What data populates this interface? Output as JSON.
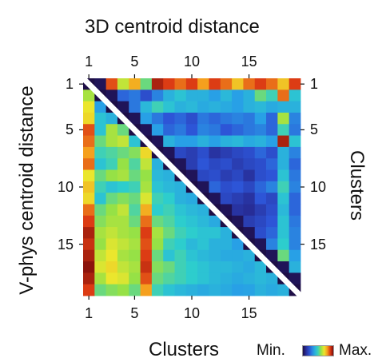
{
  "chart_data": {
    "type": "heatmap",
    "title": "3D centroid distance",
    "ylabel": "V-phys centroid distance",
    "xlabel": "Clusters",
    "ylabel_right": "Clusters",
    "ticks": [
      "1",
      "5",
      "10",
      "15"
    ],
    "tick_values": [
      1,
      5,
      10,
      15
    ],
    "n": 19,
    "legend": {
      "min_label": "Min.",
      "max_label": "Max.",
      "scale": "jet",
      "value_range": [
        0,
        1
      ]
    },
    "upper_triangle_label": "3D centroid distance",
    "lower_triangle_label": "V-phys centroid distance",
    "matrix": [
      [
        0.0,
        0.02,
        0.88,
        0.65,
        0.78,
        0.55,
        0.95,
        0.9,
        0.85,
        0.9,
        0.8,
        0.9,
        0.85,
        0.75,
        0.85,
        0.9,
        0.85,
        0.75,
        0.9
      ],
      [
        0.62,
        0.0,
        0.02,
        0.25,
        0.28,
        0.2,
        0.3,
        0.4,
        0.45,
        0.4,
        0.4,
        0.35,
        0.42,
        0.35,
        0.4,
        0.55,
        0.5,
        0.85,
        0.45
      ],
      [
        0.7,
        0.35,
        0.0,
        0.02,
        0.28,
        0.42,
        0.5,
        0.45,
        0.4,
        0.42,
        0.38,
        0.4,
        0.38,
        0.35,
        0.4,
        0.42,
        0.38,
        0.4,
        0.4
      ],
      [
        0.72,
        0.45,
        0.4,
        0.0,
        0.02,
        0.35,
        0.28,
        0.22,
        0.25,
        0.2,
        0.28,
        0.25,
        0.28,
        0.3,
        0.28,
        0.35,
        0.25,
        0.62,
        0.3
      ],
      [
        0.88,
        0.45,
        0.62,
        0.55,
        0.0,
        0.02,
        0.35,
        0.25,
        0.28,
        0.22,
        0.3,
        0.28,
        0.22,
        0.25,
        0.28,
        0.3,
        0.25,
        0.5,
        0.28
      ],
      [
        0.85,
        0.55,
        0.62,
        0.65,
        0.45,
        0.0,
        0.02,
        0.4,
        0.35,
        0.35,
        0.4,
        0.35,
        0.4,
        0.42,
        0.38,
        0.4,
        0.35,
        0.95,
        0.45
      ],
      [
        0.8,
        0.5,
        0.52,
        0.55,
        0.58,
        0.72,
        0.0,
        0.02,
        0.18,
        0.15,
        0.2,
        0.12,
        0.15,
        0.18,
        0.2,
        0.25,
        0.2,
        0.4,
        0.3
      ],
      [
        0.85,
        0.45,
        0.5,
        0.6,
        0.52,
        0.65,
        0.4,
        0.0,
        0.02,
        0.15,
        0.22,
        0.18,
        0.2,
        0.15,
        0.18,
        0.2,
        0.25,
        0.4,
        0.25
      ],
      [
        0.7,
        0.55,
        0.6,
        0.62,
        0.55,
        0.6,
        0.42,
        0.4,
        0.0,
        0.02,
        0.18,
        0.2,
        0.15,
        0.18,
        0.12,
        0.2,
        0.22,
        0.45,
        0.28
      ],
      [
        0.75,
        0.5,
        0.45,
        0.48,
        0.5,
        0.62,
        0.45,
        0.42,
        0.4,
        0.0,
        0.02,
        0.25,
        0.2,
        0.22,
        0.18,
        0.25,
        0.3,
        0.5,
        0.3
      ],
      [
        0.72,
        0.45,
        0.55,
        0.58,
        0.55,
        0.68,
        0.5,
        0.48,
        0.4,
        0.38,
        0.0,
        0.02,
        0.18,
        0.15,
        0.12,
        0.22,
        0.18,
        0.45,
        0.25
      ],
      [
        0.85,
        0.55,
        0.6,
        0.65,
        0.52,
        0.78,
        0.48,
        0.5,
        0.45,
        0.42,
        0.4,
        0.0,
        0.02,
        0.12,
        0.1,
        0.15,
        0.2,
        0.42,
        0.25
      ],
      [
        0.9,
        0.58,
        0.62,
        0.62,
        0.55,
        0.85,
        0.55,
        0.52,
        0.48,
        0.45,
        0.42,
        0.38,
        0.0,
        0.02,
        0.15,
        0.18,
        0.22,
        0.45,
        0.28
      ],
      [
        0.95,
        0.62,
        0.65,
        0.62,
        0.6,
        0.9,
        0.62,
        0.55,
        0.5,
        0.48,
        0.45,
        0.45,
        0.4,
        0.0,
        0.02,
        0.2,
        0.25,
        0.45,
        0.3
      ],
      [
        0.92,
        0.6,
        0.68,
        0.65,
        0.62,
        0.88,
        0.6,
        0.5,
        0.48,
        0.42,
        0.45,
        0.4,
        0.4,
        0.35,
        0.0,
        0.02,
        0.3,
        0.48,
        0.3
      ],
      [
        0.95,
        0.65,
        0.7,
        0.62,
        0.6,
        0.9,
        0.55,
        0.45,
        0.5,
        0.45,
        0.42,
        0.4,
        0.38,
        0.38,
        0.4,
        0.0,
        0.02,
        0.55,
        0.35
      ],
      [
        0.98,
        0.68,
        0.72,
        0.65,
        0.62,
        0.92,
        0.58,
        0.55,
        0.5,
        0.48,
        0.45,
        0.42,
        0.42,
        0.4,
        0.38,
        0.42,
        0.0,
        0.02,
        0.4
      ],
      [
        0.95,
        0.62,
        0.7,
        0.68,
        0.6,
        0.88,
        0.55,
        0.52,
        0.5,
        0.48,
        0.45,
        0.42,
        0.4,
        0.38,
        0.4,
        0.42,
        0.4,
        0.0,
        0.02
      ],
      [
        0.9,
        0.55,
        0.58,
        0.6,
        0.55,
        0.8,
        0.5,
        0.45,
        0.42,
        0.4,
        0.38,
        0.4,
        0.38,
        0.35,
        0.36,
        0.4,
        0.38,
        0.4,
        0.0
      ]
    ]
  }
}
